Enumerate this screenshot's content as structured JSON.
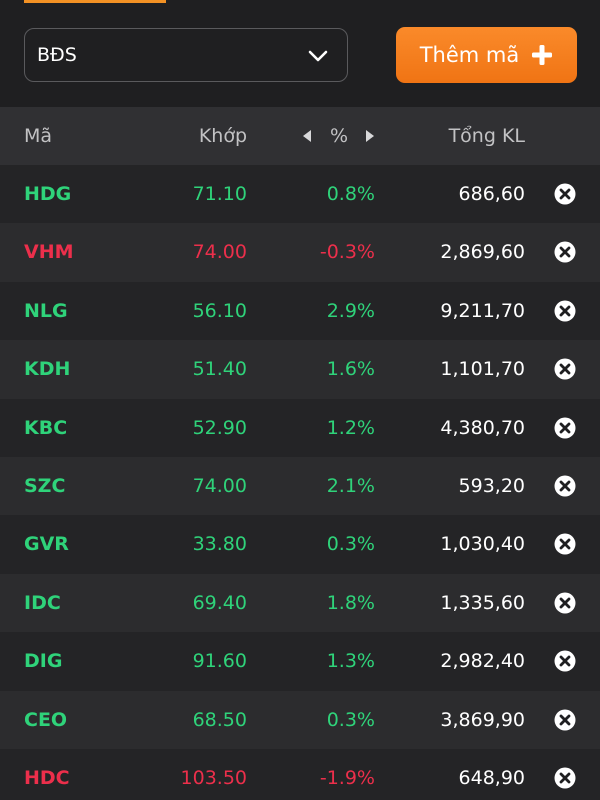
{
  "filter": {
    "selected": "BĐS"
  },
  "add_button": {
    "label": "Thêm mã"
  },
  "table": {
    "headers": {
      "symbol": "Mã",
      "match_price": "Khớp",
      "percent": "%",
      "total_volume": "Tổng KL"
    },
    "rows": [
      {
        "symbol": "HDG",
        "price": "71.10",
        "pct": "0.8%",
        "volume": "686,60",
        "trend": "up"
      },
      {
        "symbol": "VHM",
        "price": "74.00",
        "pct": "-0.3%",
        "volume": "2,869,60",
        "trend": "down"
      },
      {
        "symbol": "NLG",
        "price": "56.10",
        "pct": "2.9%",
        "volume": "9,211,70",
        "trend": "up"
      },
      {
        "symbol": "KDH",
        "price": "51.40",
        "pct": "1.6%",
        "volume": "1,101,70",
        "trend": "up"
      },
      {
        "symbol": "KBC",
        "price": "52.90",
        "pct": "1.2%",
        "volume": "4,380,70",
        "trend": "up"
      },
      {
        "symbol": "SZC",
        "price": "74.00",
        "pct": "2.1%",
        "volume": "593,20",
        "trend": "up"
      },
      {
        "symbol": "GVR",
        "price": "33.80",
        "pct": "0.3%",
        "volume": "1,030,40",
        "trend": "up"
      },
      {
        "symbol": "IDC",
        "price": "69.40",
        "pct": "1.8%",
        "volume": "1,335,60",
        "trend": "up"
      },
      {
        "symbol": "DIG",
        "price": "91.60",
        "pct": "1.3%",
        "volume": "2,982,40",
        "trend": "up"
      },
      {
        "symbol": "CEO",
        "price": "68.50",
        "pct": "0.3%",
        "volume": "3,869,90",
        "trend": "up"
      },
      {
        "symbol": "HDC",
        "price": "103.50",
        "pct": "-1.9%",
        "volume": "648,90",
        "trend": "down"
      }
    ]
  },
  "colors": {
    "up": "#2fd37a",
    "down": "#ec2f4b",
    "accent": "#f58220",
    "background": "#1f1f21"
  },
  "icons": {
    "dropdown": "chevron-down-icon",
    "add": "plus-icon",
    "remove": "close-circle-icon",
    "prev_column": "caret-left-icon",
    "next_column": "caret-right-icon"
  }
}
